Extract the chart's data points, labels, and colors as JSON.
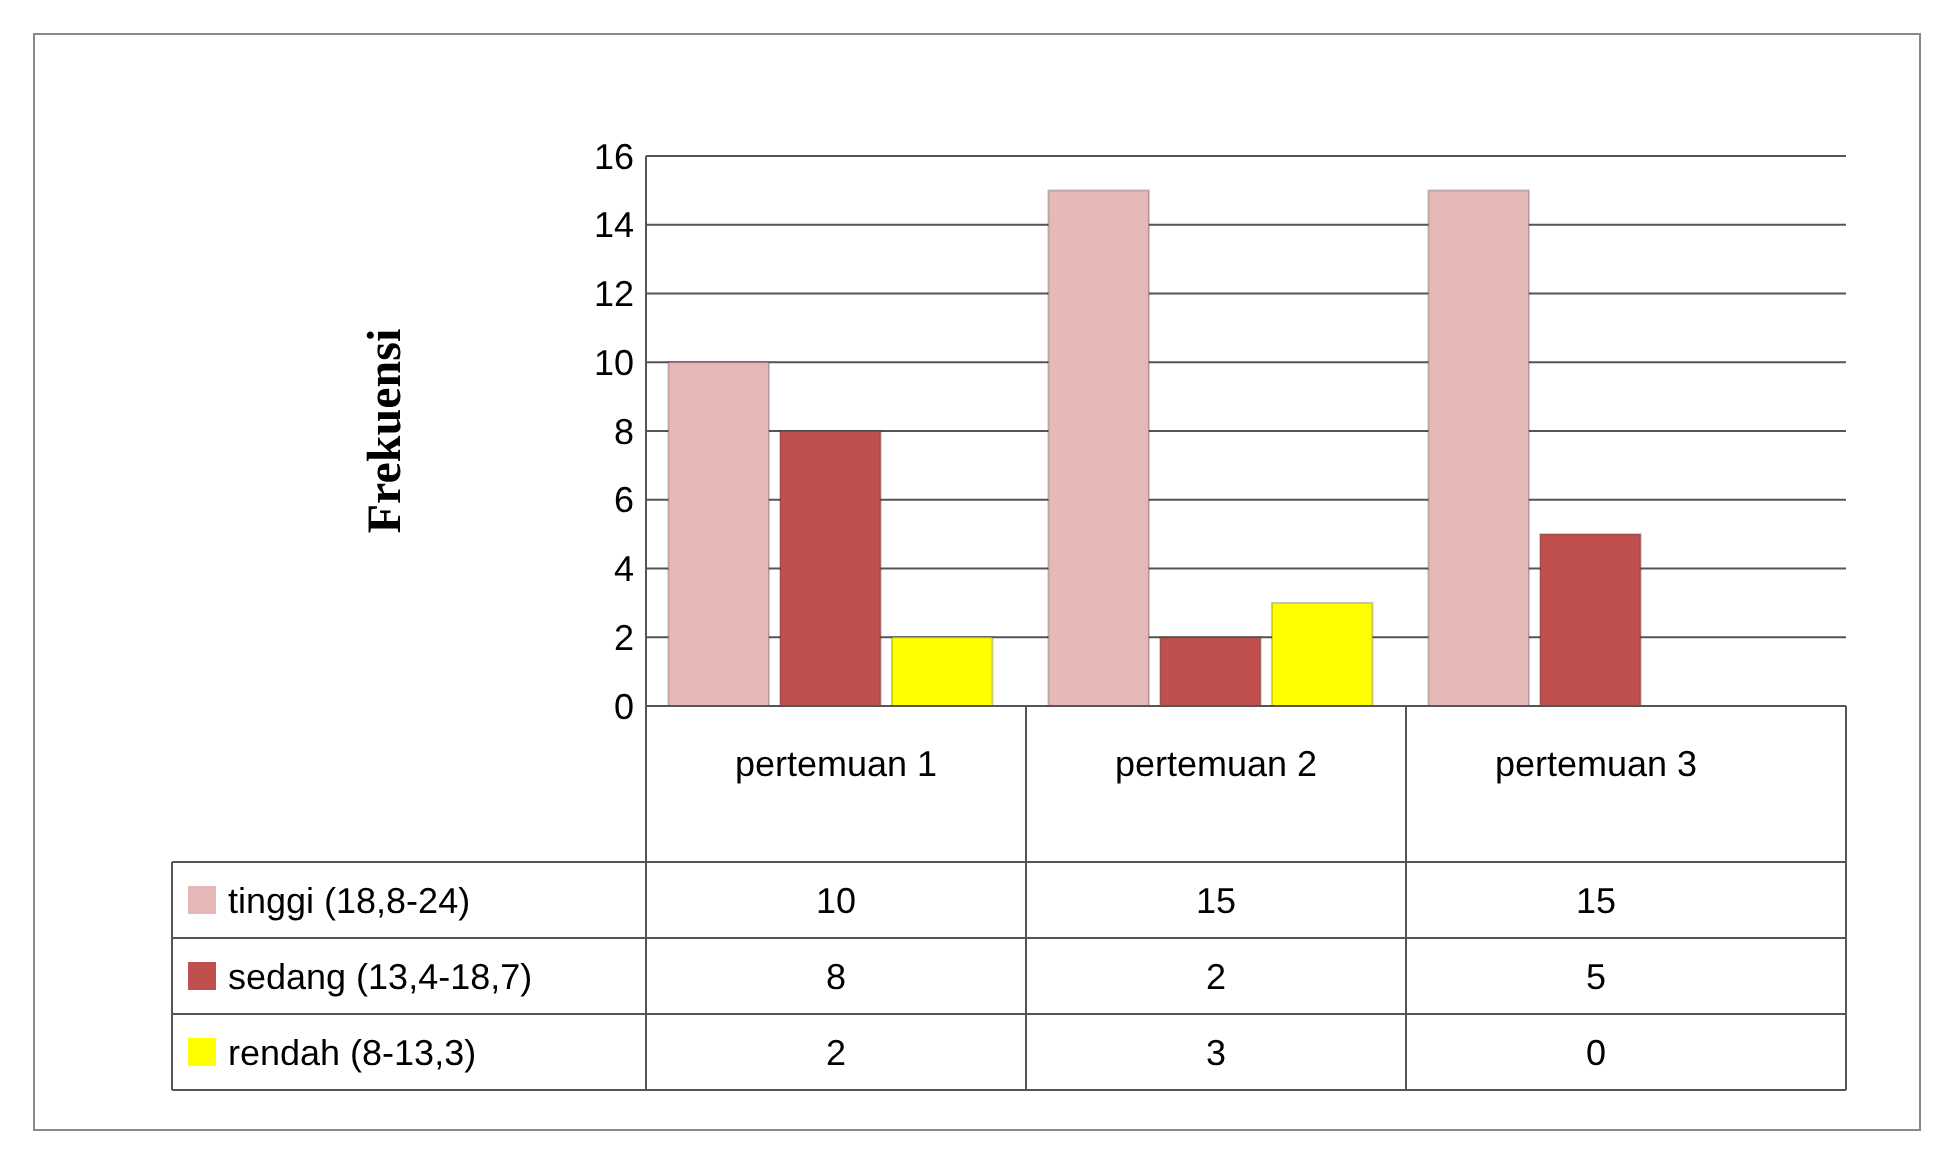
{
  "chart_data": {
    "type": "bar",
    "ylabel": "Frekuensi",
    "categories": [
      "pertemuan 1",
      "pertemuan 2",
      "pertemuan 3"
    ],
    "series": [
      {
        "name": "tinggi (18,8-24)",
        "color": "#e6b8b7",
        "values": [
          10,
          15,
          15
        ]
      },
      {
        "name": "sedang (13,4-18,7)",
        "color": "#c0504d",
        "values": [
          8,
          2,
          5
        ]
      },
      {
        "name": "rendah (8-13,3)",
        "color": "#ffff00",
        "values": [
          2,
          3,
          0
        ]
      }
    ],
    "ylim": [
      0,
      16
    ],
    "yticks": [
      0,
      2,
      4,
      6,
      8,
      10,
      12,
      14,
      16
    ],
    "grid": "y",
    "legend": "bottom",
    "data_labels": true
  }
}
